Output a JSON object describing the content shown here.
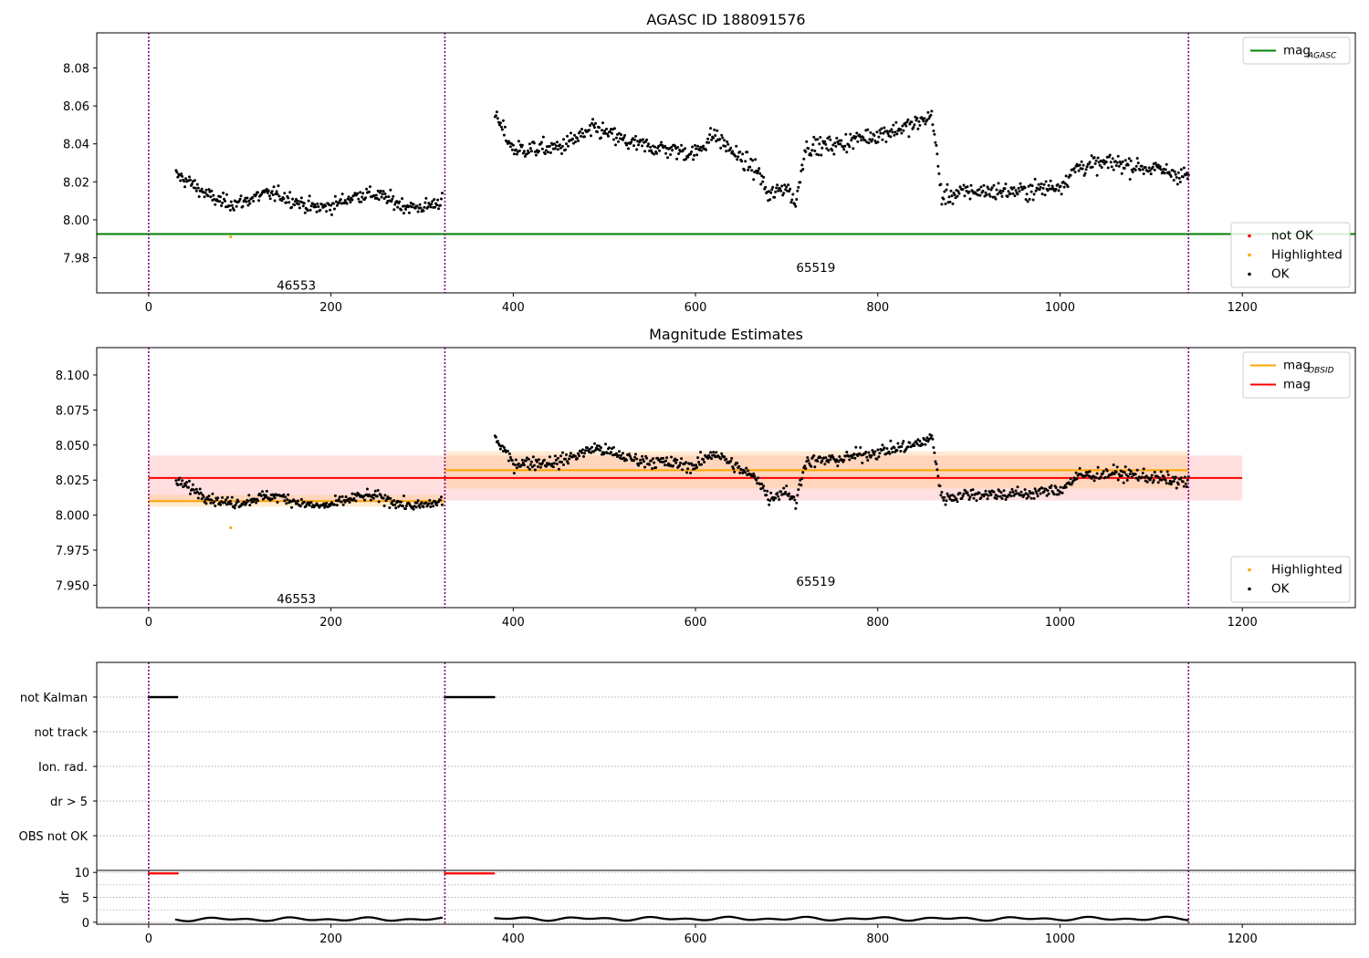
{
  "chart_data": [
    {
      "type": "scatter",
      "title": "AGASC ID 188091576",
      "xlabel": "",
      "ylabel": "",
      "xlim": [
        -57,
        1324
      ],
      "ylim": [
        7.9615,
        8.0985
      ],
      "xticks": [
        0,
        200,
        400,
        600,
        800,
        1000,
        1200
      ],
      "yticks": [
        7.98,
        8.0,
        8.02,
        8.04,
        8.06,
        8.08
      ],
      "ytick_decimals": 2,
      "grid": false,
      "obsid_boundaries": [
        0,
        325,
        1141
      ],
      "obsid_labels": [
        {
          "text": "46553",
          "x": 162,
          "y": 7.9655
        },
        {
          "text": "65519",
          "x": 732,
          "y": 7.975
        }
      ],
      "lines": [
        {
          "name": "mag",
          "sub": "AGASC",
          "kind": "hline",
          "y": 7.9925,
          "color": "#008000"
        }
      ],
      "legends": [
        {
          "position": "upper right",
          "items": [
            {
              "label": "mag",
              "sub": "AGASC",
              "kind": "line",
              "color": "#008000"
            }
          ]
        },
        {
          "position": "lower right",
          "items": [
            {
              "label": "not OK",
              "kind": "dot",
              "color": "#ff0000"
            },
            {
              "label": "Highlighted",
              "kind": "dot",
              "color": "#ffa500"
            },
            {
              "label": "OK",
              "kind": "dot",
              "color": "#000000"
            }
          ]
        }
      ],
      "highlighted": [
        {
          "x": 90,
          "y": 7.991
        }
      ],
      "series": [
        {
          "name": "OK",
          "color": "#000000",
          "segments": [
            {
              "x0": 30,
              "x1": 322,
              "n": 300,
              "mean": 8.01,
              "start": 8.02,
              "amp": 0.007,
              "noise": 0.005
            },
            {
              "x0": 380,
              "x1": 1141,
              "n": 760,
              "mean": 8.032,
              "knots": [
                [
                  380,
                  8.055
                ],
                [
                  400,
                  8.037
                ],
                [
                  450,
                  8.038
                ],
                [
                  490,
                  8.048
                ],
                [
                  530,
                  8.04
                ],
                [
                  600,
                  8.035
                ],
                [
                  620,
                  8.045
                ],
                [
                  650,
                  8.032
                ],
                [
                  670,
                  8.025
                ],
                [
                  680,
                  8.012
                ],
                [
                  700,
                  8.018
                ],
                [
                  710,
                  8.008
                ],
                [
                  720,
                  8.038
                ],
                [
                  760,
                  8.04
                ],
                [
                  780,
                  8.043
                ],
                [
                  800,
                  8.045
                ],
                [
                  840,
                  8.05
                ],
                [
                  860,
                  8.055
                ],
                [
                  870,
                  8.012
                ],
                [
                  900,
                  8.015
                ],
                [
                  960,
                  8.015
                ],
                [
                  1000,
                  8.018
                ],
                [
                  1020,
                  8.028
                ],
                [
                  1060,
                  8.03
                ],
                [
                  1100,
                  8.027
                ],
                [
                  1141,
                  8.023
                ]
              ],
              "amp": 0.0,
              "noise": 0.006
            }
          ]
        }
      ]
    },
    {
      "type": "scatter",
      "title": "Magnitude Estimates",
      "xlabel": "",
      "ylabel": "",
      "xlim": [
        -57,
        1324
      ],
      "ylim": [
        7.934,
        8.1195
      ],
      "xticks": [
        0,
        200,
        400,
        600,
        800,
        1000,
        1200
      ],
      "yticks": [
        7.95,
        7.975,
        8.0,
        8.025,
        8.05,
        8.075,
        8.1
      ],
      "ytick_decimals": 3,
      "grid": false,
      "obsid_boundaries": [
        0,
        325,
        1141
      ],
      "obsid_labels": [
        {
          "text": "46553",
          "x": 162,
          "y": 7.9405
        },
        {
          "text": "65519",
          "x": 732,
          "y": 7.953
        }
      ],
      "bands": [
        {
          "x0": 0,
          "x1": 1200,
          "y0": 8.0105,
          "y1": 8.0425,
          "color": "#ff6e6e",
          "opacity": 0.22
        },
        {
          "x0": 0,
          "x1": 325,
          "y0": 8.006,
          "y1": 8.0145,
          "color": "#ffc27a",
          "opacity": 0.35
        },
        {
          "x0": 325,
          "x1": 1141,
          "y0": 8.019,
          "y1": 8.0455,
          "color": "#ffc27a",
          "opacity": 0.35
        }
      ],
      "lines": [
        {
          "name": "mag",
          "sub": "OBSID",
          "kind": "segments",
          "color": "#ffa500",
          "segments": [
            [
              0,
              325,
              8.01
            ],
            [
              325,
              1141,
              8.032
            ]
          ]
        },
        {
          "name": "mag",
          "kind": "segments",
          "color": "#ff0000",
          "segments": [
            [
              0,
              1200,
              8.0265
            ]
          ]
        }
      ],
      "legends": [
        {
          "position": "upper right",
          "items": [
            {
              "label": "mag",
              "sub": "OBSID",
              "kind": "line",
              "color": "#ffa500"
            },
            {
              "label": "mag",
              "kind": "line",
              "color": "#ff0000"
            }
          ]
        },
        {
          "position": "lower right",
          "items": [
            {
              "label": "Highlighted",
              "kind": "dot",
              "color": "#ffa500"
            },
            {
              "label": "OK",
              "kind": "dot",
              "color": "#000000"
            }
          ]
        }
      ],
      "highlighted": [
        {
          "x": 90,
          "y": 7.991
        }
      ],
      "series": [
        {
          "name": "OK",
          "color": "#000000",
          "segments": [
            {
              "x0": 30,
              "x1": 322,
              "n": 300,
              "mean": 8.01,
              "start": 8.02,
              "amp": 0.007,
              "noise": 0.005
            },
            {
              "x0": 380,
              "x1": 1141,
              "n": 760,
              "mean": 8.032,
              "knots": [
                [
                  380,
                  8.055
                ],
                [
                  400,
                  8.037
                ],
                [
                  450,
                  8.038
                ],
                [
                  490,
                  8.048
                ],
                [
                  530,
                  8.04
                ],
                [
                  600,
                  8.035
                ],
                [
                  620,
                  8.045
                ],
                [
                  650,
                  8.032
                ],
                [
                  670,
                  8.025
                ],
                [
                  680,
                  8.012
                ],
                [
                  700,
                  8.018
                ],
                [
                  710,
                  8.008
                ],
                [
                  720,
                  8.038
                ],
                [
                  760,
                  8.04
                ],
                [
                  780,
                  8.043
                ],
                [
                  800,
                  8.045
                ],
                [
                  840,
                  8.05
                ],
                [
                  860,
                  8.055
                ],
                [
                  870,
                  8.012
                ],
                [
                  900,
                  8.015
                ],
                [
                  960,
                  8.015
                ],
                [
                  1000,
                  8.018
                ],
                [
                  1020,
                  8.028
                ],
                [
                  1060,
                  8.03
                ],
                [
                  1100,
                  8.027
                ],
                [
                  1141,
                  8.023
                ]
              ],
              "amp": 0.0,
              "noise": 0.006
            }
          ]
        }
      ]
    },
    {
      "type": "flags",
      "xlim": [
        -57,
        1324
      ],
      "categories": [
        "not Kalman",
        "not track",
        "Ion. rad.",
        "dr > 5",
        "OBS not OK"
      ],
      "obsid_boundaries": [
        0,
        325,
        1141
      ],
      "flag_ranges": [
        {
          "category": "not Kalman",
          "x0": 0,
          "x1": 32
        },
        {
          "category": "not Kalman",
          "x0": 325,
          "x1": 380
        }
      ],
      "grid": true
    },
    {
      "type": "scatter",
      "xlim": [
        -57,
        1324
      ],
      "ylim": [
        -0.4,
        10.4
      ],
      "xticks": [
        0,
        200,
        400,
        600,
        800,
        1000,
        1200
      ],
      "yticks": [
        0,
        5,
        10
      ],
      "ylabel": "dr",
      "obsid_boundaries": [
        0,
        325,
        1141
      ],
      "series": [
        {
          "name": "dr",
          "color": "#ff0000",
          "ranges": [
            [
              0,
              32,
              9.8
            ],
            [
              325,
              380,
              9.8
            ]
          ]
        },
        {
          "name": "dr",
          "color": "#000000",
          "ranges": [
            [
              30,
              322,
              0.6
            ],
            [
              380,
              1141,
              0.7
            ]
          ],
          "amp": 0.4
        }
      ]
    }
  ]
}
